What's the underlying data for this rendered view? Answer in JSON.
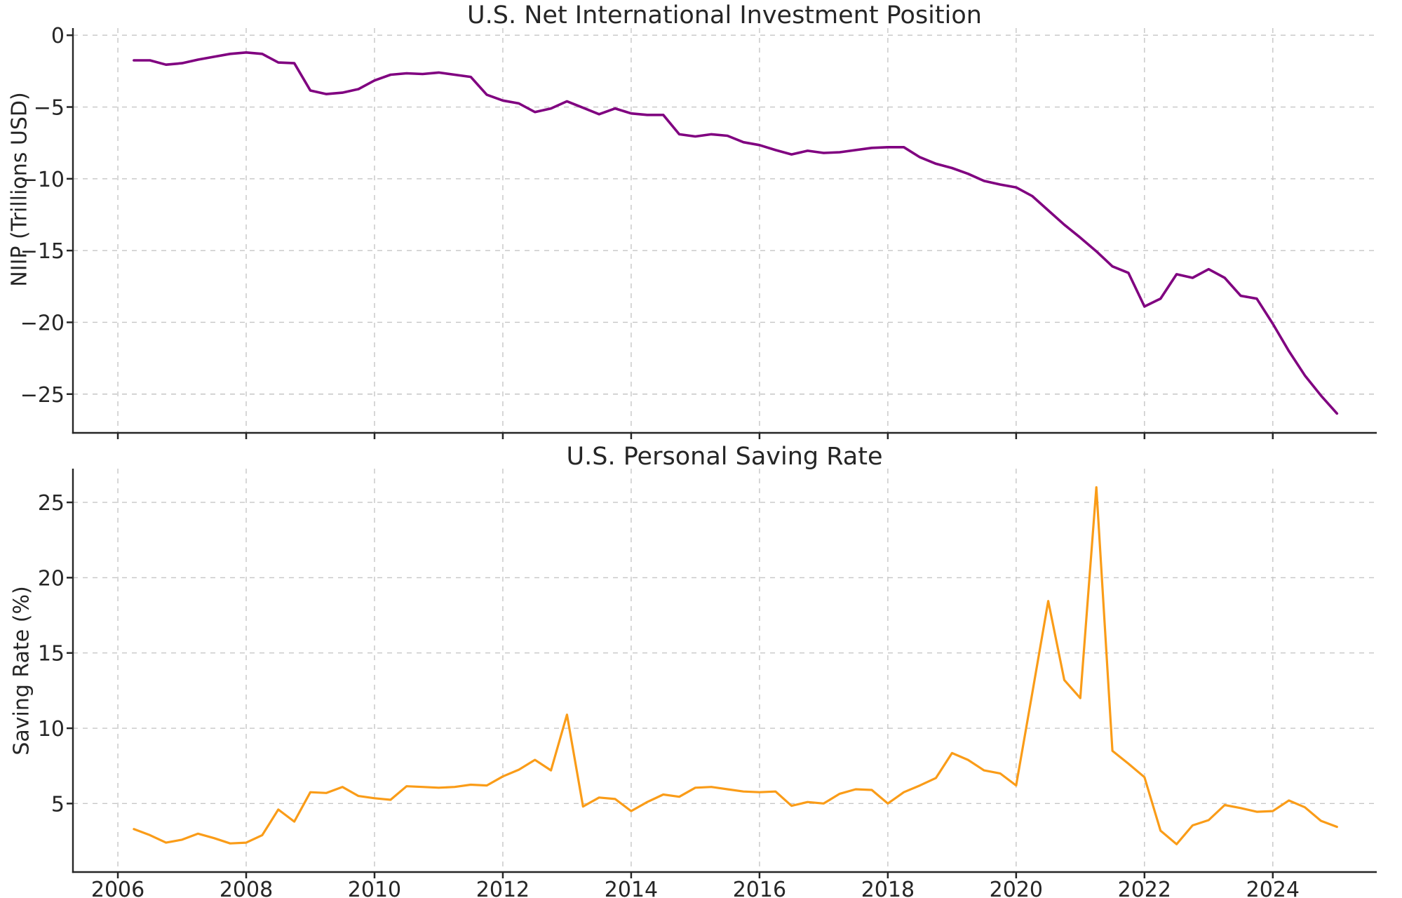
{
  "page": {
    "background": "#ffffff"
  },
  "style": {
    "text_color": "#262626",
    "spine_color": "#262626",
    "grid_color": "#c6c6c6"
  },
  "chart_data": [
    {
      "type": "line",
      "title": "U.S. Net International Investment Position",
      "xlabel": "",
      "ylabel": "NIIP (Trillions USD)",
      "grid": true,
      "legend": null,
      "show_x_tick_labels": false,
      "xlim": [
        2005.3,
        2025.62
      ],
      "ylim": [
        -27.7,
        0.5
      ],
      "xticks": [
        2006,
        2008,
        2010,
        2012,
        2014,
        2016,
        2018,
        2020,
        2022,
        2024
      ],
      "xtick_labels": [
        "2006",
        "2008",
        "2010",
        "2012",
        "2014",
        "2016",
        "2018",
        "2020",
        "2022",
        "2024"
      ],
      "yticks": [
        0,
        -5,
        -10,
        -15,
        -20,
        -25
      ],
      "ytick_labels": [
        "0",
        "−5",
        "−10",
        "−15",
        "−20",
        "−25"
      ],
      "series": [
        {
          "name": "NIIP",
          "color": "#800080",
          "line_width": 3.6,
          "x": [
            2006.25,
            2006.5,
            2006.75,
            2007.0,
            2007.25,
            2007.5,
            2007.75,
            2008.0,
            2008.25,
            2008.5,
            2008.75,
            2009.0,
            2009.25,
            2009.5,
            2009.75,
            2010.0,
            2010.25,
            2010.5,
            2010.75,
            2011.0,
            2011.25,
            2011.5,
            2011.75,
            2012.0,
            2012.25,
            2012.5,
            2012.75,
            2013.0,
            2013.25,
            2013.5,
            2013.75,
            2014.0,
            2014.25,
            2014.5,
            2014.75,
            2015.0,
            2015.25,
            2015.5,
            2015.75,
            2016.0,
            2016.25,
            2016.5,
            2016.75,
            2017.0,
            2017.25,
            2017.5,
            2017.75,
            2018.0,
            2018.25,
            2018.5,
            2018.75,
            2019.0,
            2019.25,
            2019.5,
            2019.75,
            2020.0,
            2020.25,
            2020.5,
            2020.75,
            2021.0,
            2021.25,
            2021.5,
            2021.75,
            2022.0,
            2022.25,
            2022.5,
            2022.75,
            2023.0,
            2023.25,
            2023.5,
            2023.75,
            2024.0,
            2024.25,
            2024.5,
            2024.75,
            2025.0
          ],
          "y": [
            -1.75,
            -1.75,
            -2.05,
            -1.95,
            -1.7,
            -1.5,
            -1.3,
            -1.2,
            -1.3,
            -1.9,
            -1.95,
            -3.85,
            -4.1,
            -4.0,
            -3.75,
            -3.15,
            -2.75,
            -2.65,
            -2.7,
            -2.6,
            -2.75,
            -2.9,
            -4.15,
            -4.55,
            -4.75,
            -5.35,
            -5.1,
            -4.6,
            -5.05,
            -5.5,
            -5.1,
            -5.45,
            -5.55,
            -5.55,
            -6.9,
            -7.05,
            -6.9,
            -7.0,
            -7.45,
            -7.65,
            -8.0,
            -8.3,
            -8.05,
            -8.2,
            -8.15,
            -8.0,
            -7.85,
            -7.8,
            -7.8,
            -8.5,
            -8.95,
            -9.25,
            -9.65,
            -10.15,
            -10.4,
            -10.6,
            -11.2,
            -12.2,
            -13.2,
            -14.1,
            -15.05,
            -16.1,
            -16.55,
            -18.9,
            -18.35,
            -16.65,
            -16.9,
            -16.3,
            -16.9,
            -18.15,
            -18.35,
            -20.1,
            -22.0,
            -23.7,
            -25.1,
            -26.35
          ]
        }
      ]
    },
    {
      "type": "line",
      "title": "U.S. Personal Saving Rate",
      "xlabel": "",
      "ylabel": "Saving Rate (%)",
      "grid": true,
      "legend": null,
      "show_x_tick_labels": true,
      "xlim": [
        2005.3,
        2025.62
      ],
      "ylim": [
        0.45,
        27.24
      ],
      "xticks": [
        2006,
        2008,
        2010,
        2012,
        2014,
        2016,
        2018,
        2020,
        2022,
        2024
      ],
      "xtick_labels": [
        "2006",
        "2008",
        "2010",
        "2012",
        "2014",
        "2016",
        "2018",
        "2020",
        "2022",
        "2024"
      ],
      "yticks": [
        5,
        10,
        15,
        20,
        25
      ],
      "ytick_labels": [
        "5",
        "10",
        "15",
        "20",
        "25"
      ],
      "series": [
        {
          "name": "Saving Rate",
          "color": "#FA9C18",
          "line_width": 3.2,
          "x": [
            2006.25,
            2006.5,
            2006.75,
            2007.0,
            2007.25,
            2007.5,
            2007.75,
            2008.0,
            2008.25,
            2008.5,
            2008.75,
            2009.0,
            2009.25,
            2009.5,
            2009.75,
            2010.0,
            2010.25,
            2010.5,
            2010.75,
            2011.0,
            2011.25,
            2011.5,
            2011.75,
            2012.0,
            2012.25,
            2012.5,
            2012.75,
            2013.0,
            2013.25,
            2013.5,
            2013.75,
            2014.0,
            2014.25,
            2014.5,
            2014.75,
            2015.0,
            2015.25,
            2015.5,
            2015.75,
            2016.0,
            2016.25,
            2016.5,
            2016.75,
            2017.0,
            2017.25,
            2017.5,
            2017.75,
            2018.0,
            2018.25,
            2018.5,
            2018.75,
            2019.0,
            2019.25,
            2019.5,
            2019.75,
            2020.0,
            2020.25,
            2020.5,
            2020.75,
            2021.0,
            2021.25,
            2021.5,
            2021.75,
            2022.0,
            2022.25,
            2022.5,
            2022.75,
            2023.0,
            2023.25,
            2023.5,
            2023.75,
            2024.0,
            2024.25,
            2024.5,
            2024.75,
            2025.0
          ],
          "y": [
            3.3,
            2.9,
            2.4,
            2.6,
            3.0,
            2.7,
            2.35,
            2.4,
            2.9,
            4.6,
            3.8,
            5.75,
            5.7,
            6.1,
            5.5,
            5.35,
            5.25,
            6.15,
            6.1,
            6.05,
            6.1,
            6.25,
            6.2,
            6.8,
            7.25,
            7.9,
            7.2,
            10.9,
            4.8,
            5.4,
            5.3,
            4.5,
            5.1,
            5.6,
            5.45,
            6.05,
            6.1,
            5.95,
            5.8,
            5.75,
            5.8,
            4.85,
            5.1,
            5.0,
            5.65,
            5.95,
            5.9,
            5.0,
            5.75,
            6.2,
            6.7,
            8.35,
            7.9,
            7.2,
            7.0,
            6.2,
            12.3,
            18.45,
            13.2,
            12.0,
            26.0,
            8.5,
            7.65,
            6.75,
            3.2,
            2.3,
            3.55,
            3.9,
            4.9,
            4.7,
            4.45,
            4.5,
            5.2,
            4.75,
            3.85,
            3.45
          ]
        }
      ]
    }
  ]
}
